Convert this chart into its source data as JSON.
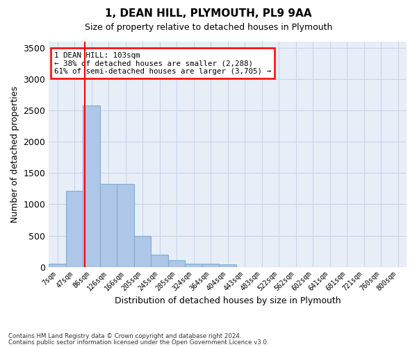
{
  "title1": "1, DEAN HILL, PLYMOUTH, PL9 9AA",
  "title2": "Size of property relative to detached houses in Plymouth",
  "xlabel": "Distribution of detached houses by size in Plymouth",
  "ylabel": "Number of detached properties",
  "footer1": "Contains HM Land Registry data © Crown copyright and database right 2024.",
  "footer2": "Contains public sector information licensed under the Open Government Licence v3.0.",
  "bin_labels": [
    "7sqm",
    "47sqm",
    "86sqm",
    "126sqm",
    "166sqm",
    "205sqm",
    "245sqm",
    "285sqm",
    "324sqm",
    "364sqm",
    "404sqm",
    "443sqm",
    "483sqm",
    "522sqm",
    "562sqm",
    "602sqm",
    "641sqm",
    "681sqm",
    "721sqm",
    "760sqm",
    "800sqm"
  ],
  "bar_values": [
    50,
    1220,
    2580,
    1330,
    1330,
    500,
    190,
    110,
    50,
    50,
    35,
    0,
    0,
    0,
    0,
    0,
    0,
    0,
    0,
    0,
    0
  ],
  "bar_color": "#aec6e8",
  "bar_edge_color": "#7aafd4",
  "grid_color": "#c8d4e8",
  "background_color": "#e8eef8",
  "annotation_text": "1 DEAN HILL: 103sqm\n← 38% of detached houses are smaller (2,288)\n61% of semi-detached houses are larger (3,705) →",
  "red_line_x": 1.62,
  "ylim": [
    0,
    3600
  ],
  "yticks": [
    0,
    500,
    1000,
    1500,
    2000,
    2500,
    3000,
    3500
  ]
}
